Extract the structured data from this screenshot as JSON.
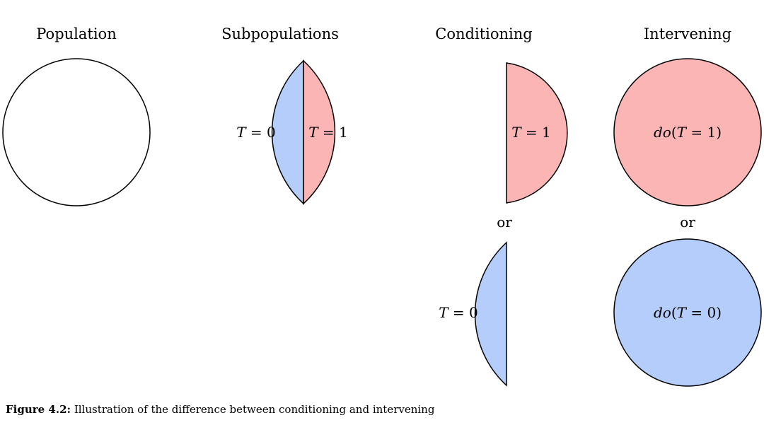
{
  "colors": {
    "blue": "#b5cdfa",
    "red": "#fbb5b5",
    "stroke": "#000000",
    "white": "#ffffff"
  },
  "titles": {
    "population": "Population",
    "subpopulations": "Subpopulations",
    "conditioning": "Conditioning",
    "intervening": "Intervening"
  },
  "or_label": "or",
  "labels": {
    "sub_t0_var": "T",
    "sub_t0_rest": " = 0",
    "sub_t1_var": "T",
    "sub_t1_rest": " = 1",
    "cond_t1_var": "T",
    "cond_t1_rest": " = 1",
    "cond_t0_var": "T",
    "cond_t0_rest": " = 0",
    "int1_do": "do",
    "int1_open": "(",
    "int1_var": "T",
    "int1_rest": " = 1)",
    "int0_do": "do",
    "int0_open": "(",
    "int0_var": "T",
    "int0_rest": " = 0)"
  },
  "caption": {
    "label": "Figure 4.2:",
    "text": " Illustration of the difference between conditioning and intervening"
  }
}
